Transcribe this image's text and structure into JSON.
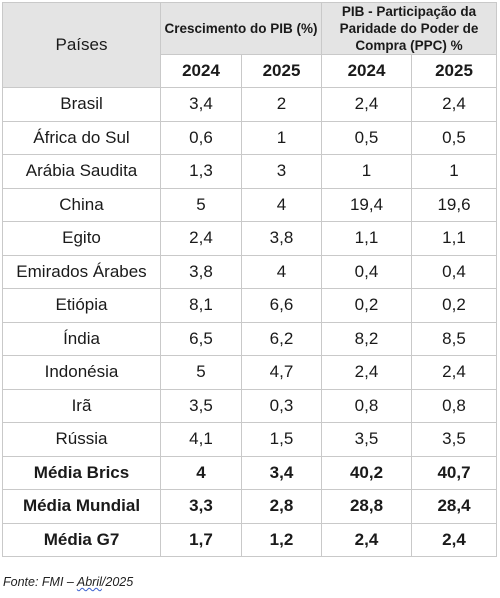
{
  "table": {
    "header": {
      "country": "Países",
      "growth_group": "Crescimento do PIB (%)",
      "ppp_group": "PIB - Participação da Paridade do Poder de Compra (PPC) %",
      "years": [
        "2024",
        "2025",
        "2024",
        "2025"
      ]
    },
    "rows": [
      {
        "country": "Brasil",
        "g2024": "3,4",
        "g2025": "2",
        "p2024": "2,4",
        "p2025": "2,4"
      },
      {
        "country": "África do Sul",
        "g2024": "0,6",
        "g2025": "1",
        "p2024": "0,5",
        "p2025": "0,5"
      },
      {
        "country": "Arábia Saudita",
        "g2024": "1,3",
        "g2025": "3",
        "p2024": "1",
        "p2025": "1"
      },
      {
        "country": "China",
        "g2024": "5",
        "g2025": "4",
        "p2024": "19,4",
        "p2025": "19,6"
      },
      {
        "country": "Egito",
        "g2024": "2,4",
        "g2025": "3,8",
        "p2024": "1,1",
        "p2025": "1,1"
      },
      {
        "country": "Emirados Árabes",
        "g2024": "3,8",
        "g2025": "4",
        "p2024": "0,4",
        "p2025": "0,4"
      },
      {
        "country": "Etiópia",
        "g2024": "8,1",
        "g2025": "6,6",
        "p2024": "0,2",
        "p2025": "0,2"
      },
      {
        "country": "Índia",
        "g2024": "6,5",
        "g2025": "6,2",
        "p2024": "8,2",
        "p2025": "8,5"
      },
      {
        "country": "Indonésia",
        "g2024": "5",
        "g2025": "4,7",
        "p2024": "2,4",
        "p2025": "2,4"
      },
      {
        "country": "Irã",
        "g2024": "3,5",
        "g2025": "0,3",
        "p2024": "0,8",
        "p2025": "0,8"
      },
      {
        "country": "Rússia",
        "g2024": "4,1",
        "g2025": "1,5",
        "p2024": "3,5",
        "p2025": "3,5"
      }
    ],
    "averages": [
      {
        "country": "Média Brics",
        "g2024": "4",
        "g2025": "3,4",
        "p2024": "40,2",
        "p2025": "40,7"
      },
      {
        "country": "Média Mundial",
        "g2024": "3,3",
        "g2025": "2,8",
        "p2024": "28,8",
        "p2025": "28,4"
      },
      {
        "country": "Média G7",
        "g2024": "1,7",
        "g2025": "1,2",
        "p2024": "2,4",
        "p2025": "2,4"
      }
    ]
  },
  "source": {
    "prefix": "Fonte: FMI – ",
    "underlined": "Abril",
    "suffix": "/2025"
  }
}
